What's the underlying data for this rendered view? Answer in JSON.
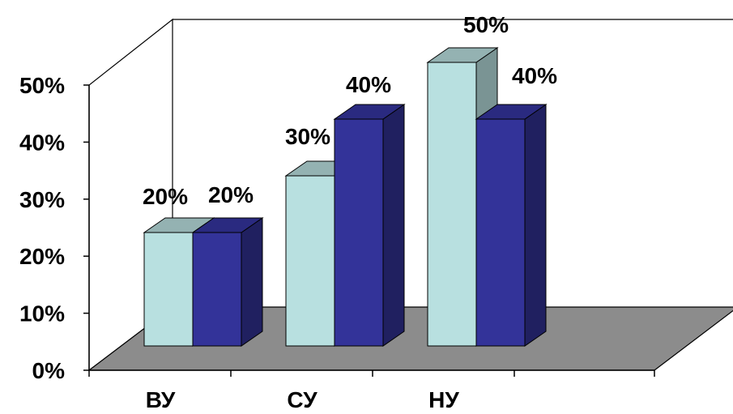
{
  "chart_data": {
    "type": "bar",
    "categories": [
      "ВУ",
      "СУ",
      "НУ"
    ],
    "series": [
      {
        "values": [
          20,
          30,
          50
        ],
        "labels": [
          "20%",
          "30%",
          "50%"
        ]
      },
      {
        "values": [
          20,
          40,
          40
        ],
        "labels": [
          "20%",
          "40%",
          "40%"
        ]
      }
    ],
    "y_ticks": [
      "0%",
      "10%",
      "20%",
      "30%",
      "40%",
      "50%"
    ],
    "ylim": [
      0,
      50
    ],
    "grid": false,
    "legend": "none",
    "style": "3d-column",
    "colors": {
      "series_1_front": "#B8E0E0",
      "series_1_top": "#94B2B2",
      "series_1_side": "#7A9494",
      "series_2_front": "#333399",
      "series_2_top": "#2A2A80",
      "series_2_side": "#202060",
      "floor": "#8C8C8C",
      "outline": "#000000"
    }
  }
}
